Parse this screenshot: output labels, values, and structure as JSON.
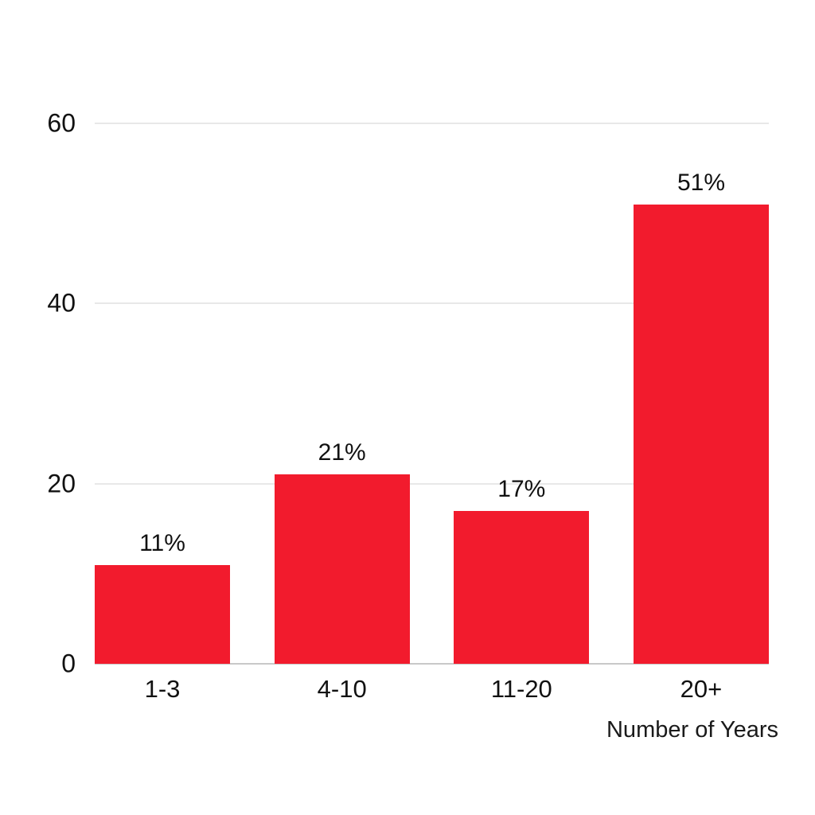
{
  "chart_data": {
    "type": "bar",
    "categories": [
      "1-3",
      "4-10",
      "11-20",
      "20+"
    ],
    "values": [
      11,
      21,
      17,
      51
    ],
    "value_labels": [
      "11%",
      "21%",
      "17%",
      "51%"
    ],
    "title": "",
    "xlabel": "Number of Years",
    "ylabel": "",
    "ylim": [
      0,
      60
    ],
    "yticks": [
      0,
      20,
      40,
      60
    ],
    "grid": true,
    "legend": "none",
    "colors": {
      "bar": "#f21b2d",
      "gridline": "#e8e8e8",
      "baseline": "#c9c9c9",
      "text": "#111111",
      "background": "#ffffff"
    }
  }
}
